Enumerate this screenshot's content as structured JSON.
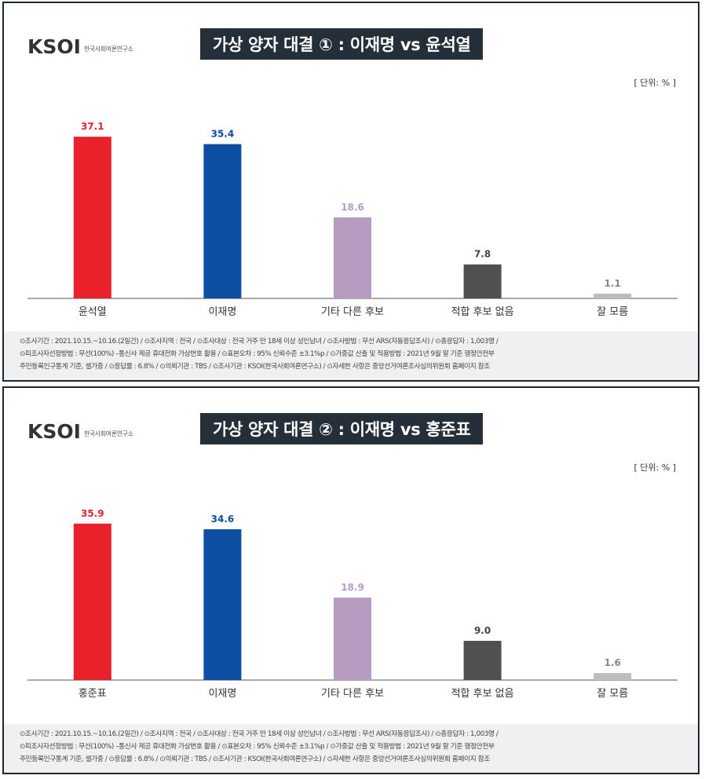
{
  "logo": {
    "brand": "KSOI",
    "subtitle": "한국사회여론연구소"
  },
  "unit_label": "[ 단위: % ]",
  "chart_data": [
    {
      "type": "bar",
      "title": "가상  양자 대결 ① : 이재명 vs 윤석열",
      "categories": [
        "윤석열",
        "이재명",
        "기타 다른 후보",
        "적합 후보 없음",
        "잘 모름"
      ],
      "values": [
        37.1,
        35.4,
        18.6,
        7.8,
        1.1
      ],
      "value_labels": [
        "37.1",
        "35.4",
        "18.6",
        "7.8",
        "1.1"
      ],
      "colors": [
        "#e8212a",
        "#0b4ea2",
        "#b59cc0",
        "#505050",
        "#bdbdbd"
      ],
      "label_colors": [
        "#e8212a",
        "#0b4ea2",
        "#b59cc0",
        "#444444",
        "#888888"
      ],
      "ylim": [
        0,
        40
      ]
    },
    {
      "type": "bar",
      "title": "가상  양자 대결 ② : 이재명 vs 홍준표",
      "categories": [
        "홍준표",
        "이재명",
        "기타 다른 후보",
        "적합 후보 없음",
        "잘 모름"
      ],
      "values": [
        35.9,
        34.6,
        18.9,
        9.0,
        1.6
      ],
      "value_labels": [
        "35.9",
        "34.6",
        "18.9",
        "9.0",
        "1.6"
      ],
      "colors": [
        "#e8212a",
        "#0b4ea2",
        "#b59cc0",
        "#505050",
        "#bdbdbd"
      ],
      "label_colors": [
        "#e8212a",
        "#0b4ea2",
        "#b59cc0",
        "#444444",
        "#888888"
      ],
      "ylim": [
        0,
        40
      ]
    }
  ],
  "notes": [
    "⊙조사기간 : 2021.10.15.~10.16.(2일간)  / ⊙조사지역 : 전국 / ⊙조사대상 : 전국 거주 만 18세 이상 성인남녀 / ⊙조사방법 : 무선 ARS(자동응답조사) / ⊙총응답자 : 1,003명 /",
    "⊙피조사자선정방법 : 무선(100%) –통신사 제공 휴대전화 가상번호 활용 / ⊙표본오차 : 95% 신뢰수준 ±3.1%p / ⊙가중값 산출 및 적용방법 : 2021년 9월 말 기준 행정안전부",
    "주민등록인구통계 기준, 셀가중 / ⊙응답률 : 6.8% / ⊙의뢰기관 : TBS / ⊙조사기관 : KSOI(한국사회여론연구소) / ⊙자세한 사항은 중앙선거여론조사심의위원회 홈페이지 참조"
  ]
}
